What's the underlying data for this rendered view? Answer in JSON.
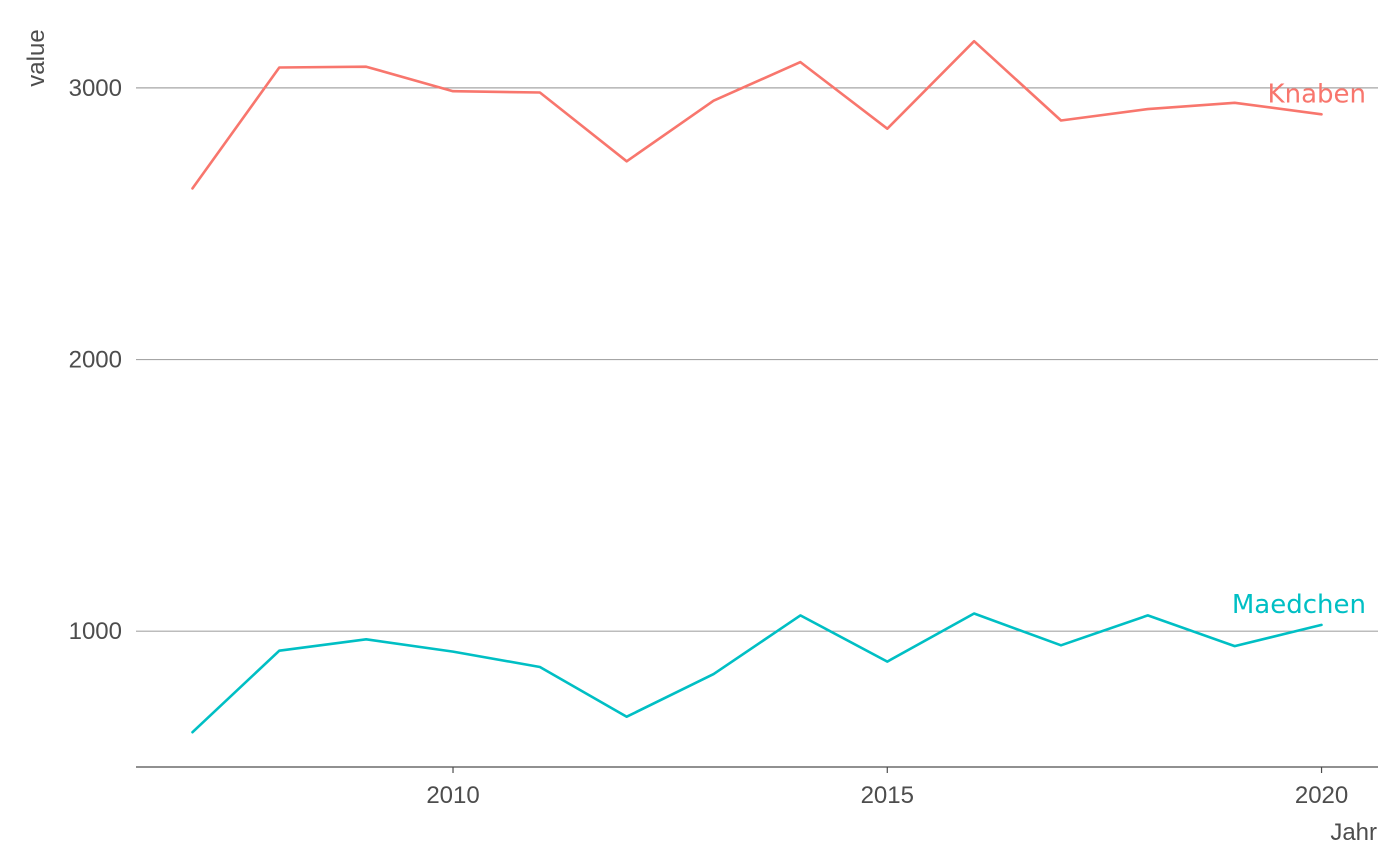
{
  "chart_data": {
    "type": "line",
    "title": "",
    "xlabel": "Jahr",
    "ylabel": "value",
    "x": [
      2007,
      2008,
      2009,
      2010,
      2011,
      2012,
      2013,
      2014,
      2015,
      2016,
      2017,
      2018,
      2019,
      2020
    ],
    "xlim": [
      2006.35,
      2020.65
    ],
    "ylim": [
      500,
      3250
    ],
    "x_ticks": [
      2010,
      2015,
      2020
    ],
    "y_ticks": [
      1000,
      2000,
      3000
    ],
    "x_tick_labels": [
      "2010",
      "2015",
      "2020"
    ],
    "y_tick_labels": [
      "1000",
      "2000",
      "3000"
    ],
    "grid": "horizontal major",
    "legend": "direct labels at line ends",
    "series": [
      {
        "name": "Knaben",
        "color": "#F8766D",
        "values": [
          2630,
          3075,
          3078,
          2988,
          2983,
          2730,
          2953,
          3095,
          2850,
          3172,
          2880,
          2922,
          2945,
          2903
        ]
      },
      {
        "name": "Maedchen",
        "color": "#00BFC4",
        "values": [
          628,
          928,
          970,
          925,
          868,
          685,
          842,
          1058,
          888,
          1065,
          948,
          1058,
          945,
          1023
        ]
      }
    ]
  }
}
